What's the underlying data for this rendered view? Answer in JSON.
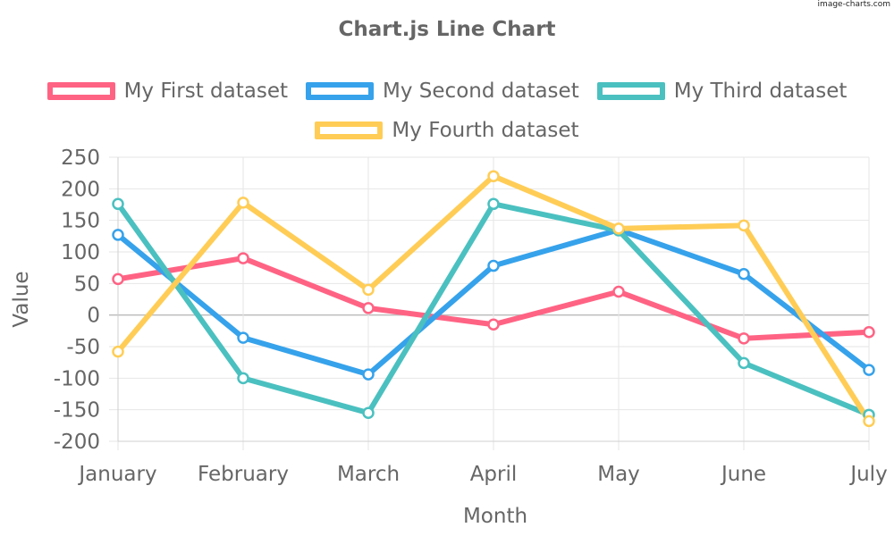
{
  "watermark": "image-charts.com",
  "chart_data": {
    "type": "line",
    "title": "Chart.js Line Chart",
    "xlabel": "Month",
    "ylabel": "Value",
    "categories": [
      "January",
      "February",
      "March",
      "April",
      "May",
      "June",
      "July"
    ],
    "ylim": [
      -200,
      250
    ],
    "yticks": [
      "250",
      "200",
      "150",
      "100",
      "50",
      "0",
      "-50",
      "-100",
      "-150",
      "-200"
    ],
    "grid": true,
    "legend_position": "top",
    "series": [
      {
        "name": "My First dataset",
        "color": "#ff6384",
        "values": [
          57,
          90,
          11,
          -15,
          37,
          -37,
          -27
        ]
      },
      {
        "name": "My Second dataset",
        "color": "#36a2eb",
        "values": [
          127,
          -36,
          -94,
          78,
          135,
          65,
          -87
        ]
      },
      {
        "name": "My Third dataset",
        "color": "#4bc0c0",
        "values": [
          176,
          -100,
          -155,
          176,
          134,
          -76,
          -158
        ]
      },
      {
        "name": "My Fourth dataset",
        "color": "#ffcd56",
        "values": [
          -58,
          178,
          40,
          220,
          137,
          142,
          -168
        ]
      }
    ]
  }
}
